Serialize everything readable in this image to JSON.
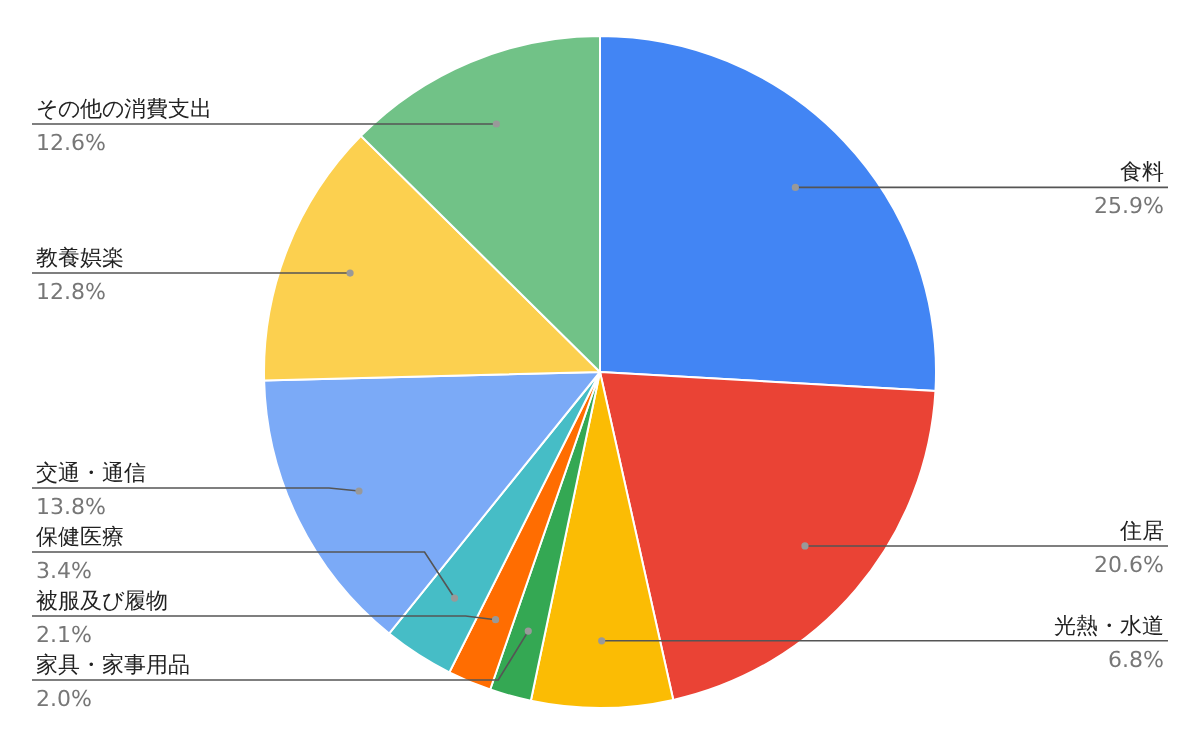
{
  "chart_data": {
    "type": "pie",
    "categories": [
      "食料",
      "住居",
      "光熱・水道",
      "家具・家事用品",
      "被服及び履物",
      "保健医療",
      "交通・通信",
      "教養娯楽",
      "その他の消費支出"
    ],
    "values": [
      25.9,
      20.6,
      6.8,
      2.0,
      2.1,
      3.4,
      13.8,
      12.8,
      12.6
    ],
    "value_labels": [
      "25.9%",
      "20.6%",
      "6.8%",
      "2.0%",
      "2.1%",
      "3.4%",
      "13.8%",
      "12.8%",
      "12.6%"
    ],
    "colors": [
      "#4285f4",
      "#ea4335",
      "#fbbc04",
      "#34a853",
      "#ff6d01",
      "#46bdc6",
      "#7baaf7",
      "#fcd04f",
      "#71c287"
    ]
  }
}
